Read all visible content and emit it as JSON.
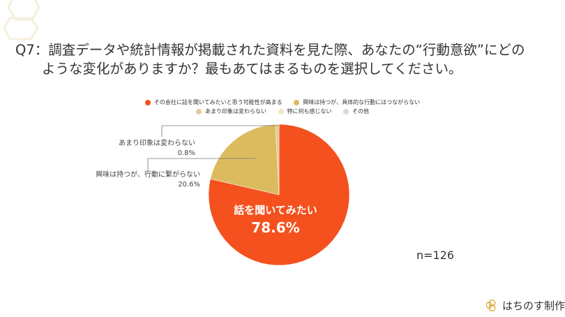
{
  "title": {
    "line1": "Q7：調査データや統計情報が掲載された資料を見た際、あなたの“行動意欲”にどの",
    "line2": "ような変化がありますか？最もあてはまるものを選択してください。"
  },
  "chart_data": {
    "type": "pie",
    "categories": [
      "その会社に話を聞いてみたいと思う可能性が高まる",
      "興味は持つが、具体的な行動にはつながらない",
      "あまり印象は変わらない",
      "特に何も感じない",
      "その他"
    ],
    "values": [
      78.6,
      20.6,
      0.8,
      0,
      0
    ],
    "colors": [
      "#f4511e",
      "#dcbb5f",
      "#e0cc98",
      "#f3e6bf",
      "#d9d9d9"
    ],
    "legend_position": "top",
    "data_labels": [
      {
        "name": "話を聞いてみたい",
        "value": "78.6%"
      },
      {
        "name": "興味は持つが、行動に繋がらない",
        "value": "20.6%"
      },
      {
        "name": "あまり印象は変わらない",
        "value": "0.8%"
      }
    ]
  },
  "sample": "n=126",
  "footer": {
    "brand": "はちのす制作"
  }
}
